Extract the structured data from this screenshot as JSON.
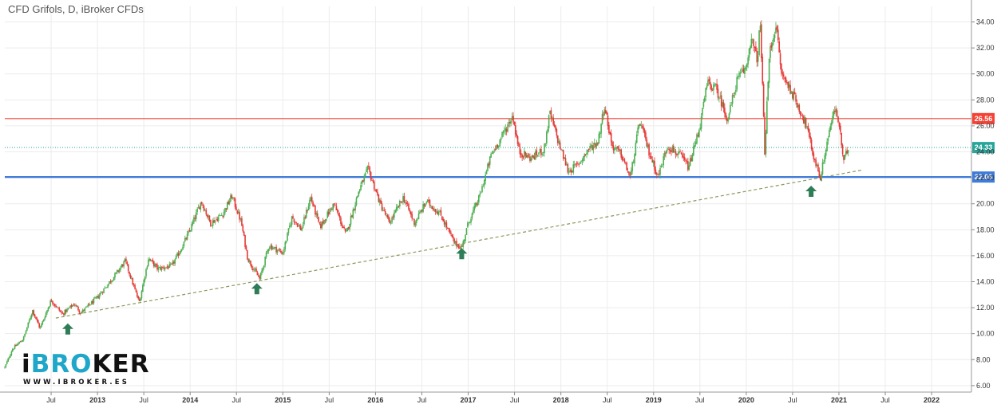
{
  "title": "CFD Grifols, D, iBroker CFDs",
  "logo": {
    "main_prefix": "i",
    "main_accent": "BRO",
    "main_suffix": "KER",
    "sub": "WWW.IBROKER.ES"
  },
  "colors": {
    "up": "#4caf50",
    "down": "#e53935",
    "resistance": "#f44336",
    "support": "#3f7bd9",
    "trendline": "#8a9a5b",
    "current": "#26a69a",
    "arrow": "#2e7d57",
    "grid": "#ececec"
  },
  "chart_data": {
    "type": "candlestick",
    "title": "CFD Grifols, D, iBroker CFDs",
    "ylim": [
      5.5,
      35.2
    ],
    "y_ticks": [
      "6.00",
      "8.00",
      "10.00",
      "12.00",
      "14.00",
      "16.00",
      "18.00",
      "20.00",
      "22.00",
      "24.00",
      "26.00",
      "28.00",
      "30.00",
      "32.00",
      "34.00"
    ],
    "x_ticks": [
      {
        "label": "Jul",
        "t": 2012.5,
        "year": false
      },
      {
        "label": "2013",
        "t": 2013.0,
        "year": true
      },
      {
        "label": "Jul",
        "t": 2013.5,
        "year": false
      },
      {
        "label": "2014",
        "t": 2014.0,
        "year": true
      },
      {
        "label": "Jul",
        "t": 2014.5,
        "year": false
      },
      {
        "label": "2015",
        "t": 2015.0,
        "year": true
      },
      {
        "label": "Jul",
        "t": 2015.5,
        "year": false
      },
      {
        "label": "2016",
        "t": 2016.0,
        "year": true
      },
      {
        "label": "Jul",
        "t": 2016.5,
        "year": false
      },
      {
        "label": "2017",
        "t": 2017.0,
        "year": true
      },
      {
        "label": "Jul",
        "t": 2017.5,
        "year": false
      },
      {
        "label": "2018",
        "t": 2018.0,
        "year": true
      },
      {
        "label": "Jul",
        "t": 2018.5,
        "year": false
      },
      {
        "label": "2019",
        "t": 2019.0,
        "year": true
      },
      {
        "label": "Jul",
        "t": 2019.5,
        "year": false
      },
      {
        "label": "2020",
        "t": 2020.0,
        "year": true
      },
      {
        "label": "Jul",
        "t": 2020.5,
        "year": false
      },
      {
        "label": "2021",
        "t": 2021.0,
        "year": true
      },
      {
        "label": "Jul",
        "t": 2021.5,
        "year": false
      },
      {
        "label": "2022",
        "t": 2022.0,
        "year": true
      }
    ],
    "xlim": [
      2012.0,
      2022.43
    ],
    "price_path": [
      [
        2012.0,
        7.4
      ],
      [
        2012.08,
        8.8
      ],
      [
        2012.2,
        9.6
      ],
      [
        2012.3,
        11.8
      ],
      [
        2012.38,
        10.4
      ],
      [
        2012.5,
        12.6
      ],
      [
        2012.62,
        11.5
      ],
      [
        2012.75,
        12.3
      ],
      [
        2012.82,
        11.6
      ],
      [
        2013.0,
        12.8
      ],
      [
        2013.2,
        14.6
      ],
      [
        2013.3,
        15.6
      ],
      [
        2013.45,
        12.4
      ],
      [
        2013.55,
        15.8
      ],
      [
        2013.65,
        15.0
      ],
      [
        2013.8,
        15.2
      ],
      [
        2013.9,
        16.5
      ],
      [
        2014.0,
        18.0
      ],
      [
        2014.12,
        20.2
      ],
      [
        2014.22,
        18.5
      ],
      [
        2014.35,
        19.2
      ],
      [
        2014.45,
        20.6
      ],
      [
        2014.55,
        18.6
      ],
      [
        2014.62,
        15.8
      ],
      [
        2014.75,
        14.2
      ],
      [
        2014.85,
        16.8
      ],
      [
        2015.0,
        16.2
      ],
      [
        2015.1,
        19.0
      ],
      [
        2015.2,
        18.0
      ],
      [
        2015.3,
        20.5
      ],
      [
        2015.4,
        18.2
      ],
      [
        2015.55,
        20.0
      ],
      [
        2015.68,
        17.6
      ],
      [
        2015.82,
        21.0
      ],
      [
        2015.92,
        22.7
      ],
      [
        2016.05,
        20.0
      ],
      [
        2016.15,
        18.5
      ],
      [
        2016.3,
        20.5
      ],
      [
        2016.42,
        18.5
      ],
      [
        2016.55,
        20.2
      ],
      [
        2016.7,
        19.2
      ],
      [
        2016.85,
        17.0
      ],
      [
        2016.93,
        16.6
      ],
      [
        2017.0,
        18.5
      ],
      [
        2017.12,
        20.5
      ],
      [
        2017.25,
        23.8
      ],
      [
        2017.35,
        25.0
      ],
      [
        2017.48,
        26.8
      ],
      [
        2017.55,
        24.0
      ],
      [
        2017.68,
        23.5
      ],
      [
        2017.82,
        24.2
      ],
      [
        2017.88,
        27.0
      ],
      [
        2017.98,
        24.6
      ],
      [
        2018.08,
        22.5
      ],
      [
        2018.18,
        23.0
      ],
      [
        2018.3,
        24.2
      ],
      [
        2018.4,
        24.8
      ],
      [
        2018.47,
        27.6
      ],
      [
        2018.55,
        24.5
      ],
      [
        2018.65,
        23.8
      ],
      [
        2018.75,
        22.0
      ],
      [
        2018.85,
        26.4
      ],
      [
        2018.95,
        24.0
      ],
      [
        2019.05,
        22.1
      ],
      [
        2019.15,
        24.5
      ],
      [
        2019.3,
        23.6
      ],
      [
        2019.38,
        22.8
      ],
      [
        2019.5,
        26.0
      ],
      [
        2019.58,
        29.3
      ],
      [
        2019.68,
        28.8
      ],
      [
        2019.8,
        26.5
      ],
      [
        2019.9,
        29.5
      ],
      [
        2020.0,
        30.5
      ],
      [
        2020.05,
        32.8
      ],
      [
        2020.12,
        31.0
      ],
      [
        2020.15,
        34.0
      ],
      [
        2020.2,
        24.0
      ],
      [
        2020.25,
        31.5
      ],
      [
        2020.32,
        33.8
      ],
      [
        2020.38,
        30.0
      ],
      [
        2020.48,
        28.8
      ],
      [
        2020.58,
        27.2
      ],
      [
        2020.65,
        26.0
      ],
      [
        2020.72,
        23.8
      ],
      [
        2020.8,
        22.0
      ],
      [
        2020.9,
        25.8
      ],
      [
        2020.96,
        27.3
      ],
      [
        2021.0,
        26.2
      ],
      [
        2021.05,
        23.2
      ],
      [
        2021.1,
        24.3
      ]
    ],
    "levels": [
      {
        "name": "resistance",
        "value": 26.56,
        "label": "26.56"
      },
      {
        "name": "current",
        "value": 24.33,
        "label": "24.33"
      },
      {
        "name": "support",
        "value": 22.06,
        "label": "22.06"
      }
    ],
    "trendline": {
      "from": [
        2012.55,
        11.2
      ],
      "to": [
        2021.25,
        22.6
      ]
    },
    "arrows": [
      {
        "t": 2012.68,
        "value": 10.3
      },
      {
        "t": 2014.72,
        "value": 13.4
      },
      {
        "t": 2016.93,
        "value": 16.1
      },
      {
        "t": 2020.7,
        "value": 20.9
      }
    ]
  }
}
